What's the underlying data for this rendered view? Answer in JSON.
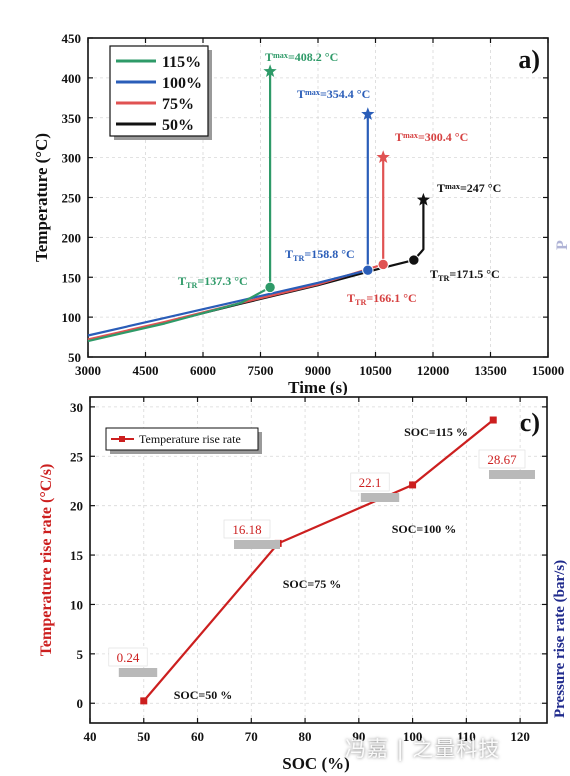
{
  "chart_data": [
    {
      "panel": "a)",
      "type": "line",
      "xlabel": "Time (s)",
      "ylabel": "Temperature (°C)",
      "xlim": [
        3000,
        15000
      ],
      "ylim": [
        50,
        450
      ],
      "xticks": [
        3000,
        4500,
        6000,
        7500,
        9000,
        10500,
        12000,
        13500,
        15000
      ],
      "yticks": [
        50,
        100,
        150,
        200,
        250,
        300,
        350,
        400,
        450
      ],
      "grid": true,
      "legend_position": "top-left",
      "series": [
        {
          "name": "115%",
          "color": "#2e9a68",
          "points": [
            [
              3000,
              70
            ],
            [
              5000,
              92
            ],
            [
              7000,
              118
            ],
            [
              7750,
              137.3
            ],
            [
              7750,
              408.2
            ]
          ],
          "onset": [
            7750,
            137.3
          ],
          "peak": [
            7750,
            408.2
          ]
        },
        {
          "name": "100%",
          "color": "#2a5db8",
          "points": [
            [
              3000,
              77
            ],
            [
              5000,
              99
            ],
            [
              7000,
              121
            ],
            [
              9000,
              143
            ],
            [
              10300,
              158.8
            ],
            [
              10300,
              354.4
            ]
          ],
          "onset": [
            10300,
            158.8
          ],
          "peak": [
            10300,
            354.4
          ]
        },
        {
          "name": "75%",
          "color": "#e05252",
          "points": [
            [
              3000,
              72
            ],
            [
              5000,
              94
            ],
            [
              7000,
              118
            ],
            [
              9000,
              141
            ],
            [
              10700,
              166.1
            ],
            [
              10700,
              300.4
            ]
          ],
          "onset": [
            10700,
            166.1
          ],
          "peak": [
            10700,
            300.4
          ]
        },
        {
          "name": "50%",
          "color": "#111111",
          "points": [
            [
              3000,
              71
            ],
            [
              5000,
              93
            ],
            [
              7000,
              117
            ],
            [
              9000,
              140
            ],
            [
              10700,
              162
            ],
            [
              11500,
              171.5
            ],
            [
              11680,
              181
            ],
            [
              11750,
              185
            ],
            [
              11750,
              247
            ]
          ],
          "onset": [
            11500,
            171.5
          ],
          "peak": [
            11750,
            247
          ]
        }
      ],
      "annotations": [
        {
          "base": "T",
          "sub": "max",
          "value": "=408.2 °C",
          "color": "#2e9a68"
        },
        {
          "base": "T",
          "sub": "max",
          "value": "=354.4 °C",
          "color": "#2a5db8"
        },
        {
          "base": "T",
          "sub": "max",
          "value": "=300.4 °C",
          "color": "#d64040"
        },
        {
          "base": "T",
          "sub": "max",
          "value": "=247 °C",
          "color": "#111111"
        },
        {
          "base": "T",
          "sub": "TR",
          "value": "=137.3 °C",
          "color": "#2e9a68"
        },
        {
          "base": "T",
          "sub": "TR",
          "value": "=158.8 °C",
          "color": "#2a5db8"
        },
        {
          "base": "T",
          "sub": "TR",
          "value": "=166.1 °C",
          "color": "#d64040"
        },
        {
          "base": "T",
          "sub": "TR",
          "value": "=171.5 °C",
          "color": "#111111"
        }
      ]
    },
    {
      "panel": "c)",
      "type": "line",
      "xlabel": "SOC (%)",
      "ylabel": "Temperature rise rate (°C/s)",
      "right_ylabel": "Pressure rise rate (bar/s)",
      "xlim": [
        40,
        125
      ],
      "ylim": [
        -2,
        31
      ],
      "xticks": [
        40,
        50,
        60,
        70,
        80,
        90,
        100,
        110,
        120
      ],
      "xtick_labels": [
        "40",
        "50",
        "60",
        "70",
        "80",
        "90",
        "100",
        "110",
        "120"
      ],
      "yticks": [
        0,
        5,
        10,
        15,
        20,
        25,
        30
      ],
      "grid": true,
      "legend_position": "top-left",
      "series": [
        {
          "name": "Temperature rise rate",
          "color": "#cc1f1f",
          "x": [
            50,
            75,
            100,
            115
          ],
          "values": [
            0.24,
            16.18,
            22.1,
            28.67
          ]
        }
      ],
      "data_labels": [
        "0.24",
        "16.18",
        "22.1",
        "28.67"
      ],
      "point_labels": [
        "SOC=50 %",
        "SOC=75 %",
        "SOC=100 %",
        "SOC=115 %"
      ]
    }
  ],
  "clipped_right_axis": {
    "top_fragment": "P",
    "bottom_label": "Pressure rise rate (bar/s)"
  },
  "watermark": "冯嘉 | 之量科技"
}
